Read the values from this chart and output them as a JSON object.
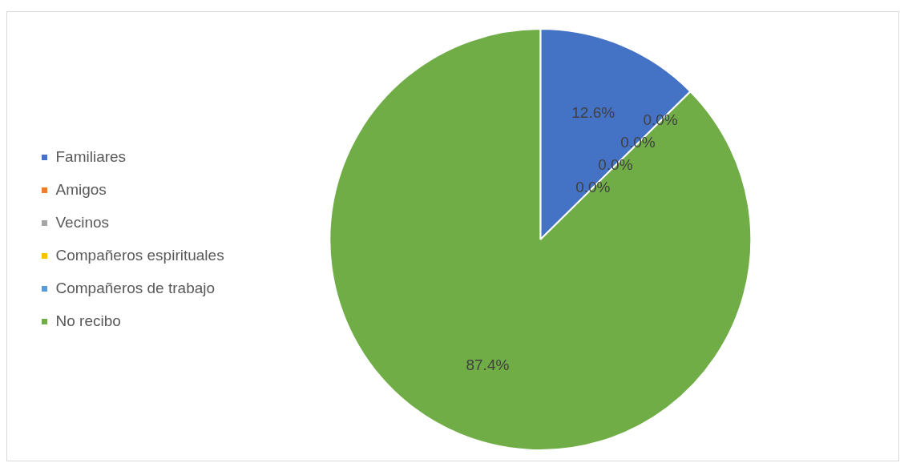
{
  "chart_data": {
    "type": "pie",
    "categories": [
      "Familiares",
      "Amigos",
      "Vecinos",
      "Compañeros espirituales",
      "Compañeros de trabajo",
      "No recibo"
    ],
    "values": [
      12.6,
      0.0,
      0.0,
      0.0,
      0.0,
      87.4
    ],
    "colors": [
      "#4472c4",
      "#ed7d31",
      "#a5a5a5",
      "#ffc000",
      "#5b9bd5",
      "#70ad47"
    ],
    "value_labels": [
      "12.6%",
      "0.0%",
      "0.0%",
      "0.0%",
      "0.0%",
      "87.4%"
    ],
    "legend": "left"
  }
}
